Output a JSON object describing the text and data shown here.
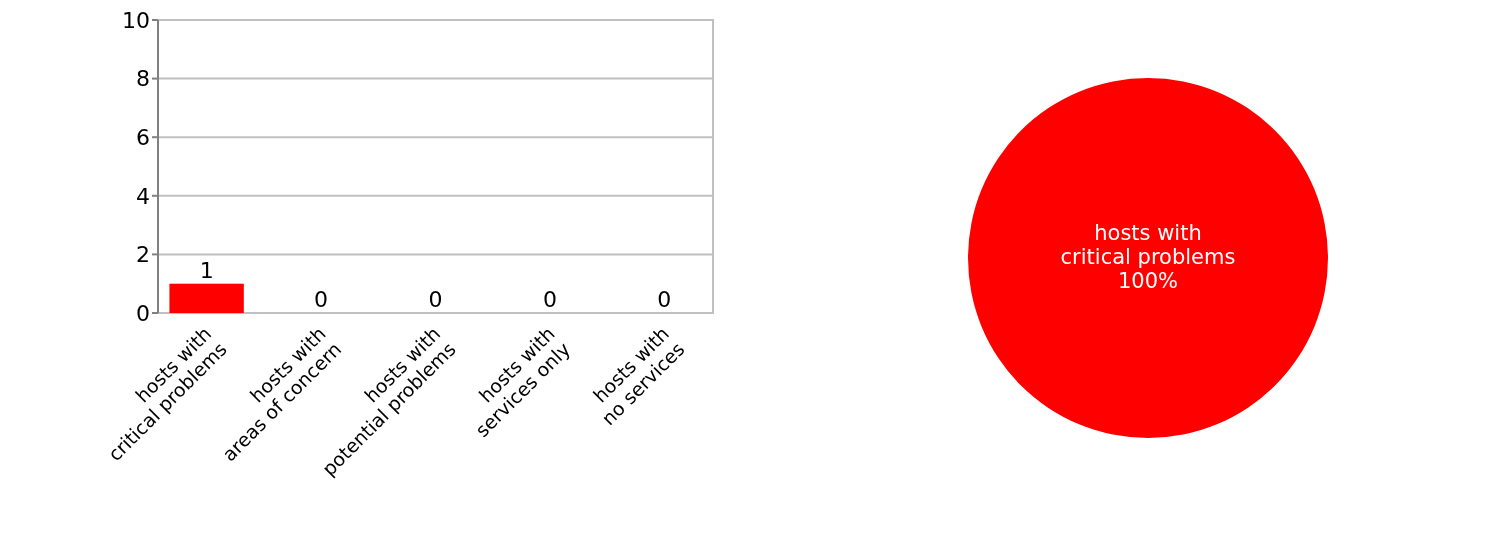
{
  "chart_data": [
    {
      "type": "bar",
      "categories": [
        "hosts with\ncritical problems",
        "hosts with\nareas of concern",
        "hosts with\npotential problems",
        "hosts with\nservices only",
        "hosts with\nno services"
      ],
      "values": [
        1,
        0,
        0,
        0,
        0
      ],
      "colors": [
        "#ff0000",
        "#808000",
        "#705030",
        "#007000",
        "#222222"
      ],
      "ylim": [
        0,
        10
      ],
      "yticks": [
        0,
        2,
        4,
        6,
        8,
        10
      ],
      "grid": "y",
      "data_labels": true
    },
    {
      "type": "pie",
      "categories": [
        "hosts with\ncritical problems"
      ],
      "values": [
        100
      ],
      "value_labels": [
        "100%"
      ],
      "colors": [
        "#ff0000"
      ]
    }
  ]
}
